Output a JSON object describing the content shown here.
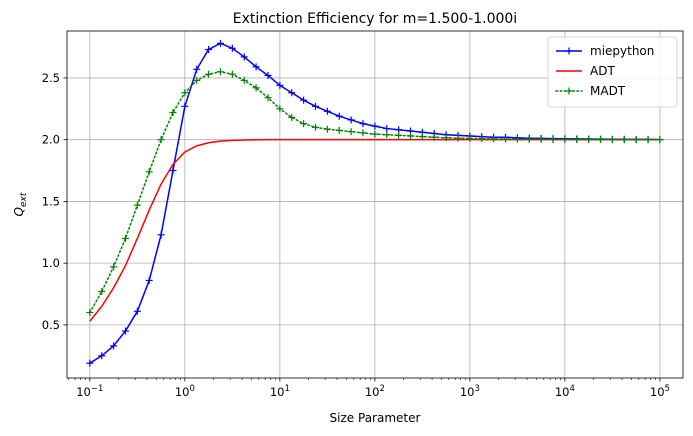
{
  "chart_data": {
    "type": "line",
    "title": "Extinction Efficiency for m=1.500-1.000i",
    "xlabel": "Size Parameter",
    "ylabel_main": "Q",
    "ylabel_sub": "ext",
    "xscale": "log",
    "xlim": [
      0.0575,
      175000
    ],
    "ylim": [
      0.07,
      2.88
    ],
    "grid": true,
    "legend_position": "top-right",
    "x_ticks": [
      {
        "value": 0.1,
        "base": "10",
        "exp": "−1"
      },
      {
        "value": 1,
        "base": "10",
        "exp": "0"
      },
      {
        "value": 10,
        "base": "10",
        "exp": "1"
      },
      {
        "value": 100,
        "base": "10",
        "exp": "2"
      },
      {
        "value": 1000,
        "base": "10",
        "exp": "3"
      },
      {
        "value": 10000,
        "base": "10",
        "exp": "4"
      },
      {
        "value": 100000,
        "base": "10",
        "exp": "5"
      }
    ],
    "y_ticks": [
      {
        "value": 0.5,
        "label": "0.5"
      },
      {
        "value": 1.0,
        "label": "1.0"
      },
      {
        "value": 1.5,
        "label": "1.5"
      },
      {
        "value": 2.0,
        "label": "2.0"
      },
      {
        "value": 2.5,
        "label": "2.5"
      }
    ],
    "series": [
      {
        "name": "miepython",
        "color": "#0000ff",
        "line_style": "solid",
        "marker": "plus",
        "x": [
          0.1,
          0.1334,
          0.1778,
          0.2371,
          0.3162,
          0.4217,
          0.5623,
          0.7499,
          1.0,
          1.334,
          1.778,
          2.371,
          3.162,
          4.217,
          5.623,
          7.499,
          10.0,
          13.34,
          17.78,
          23.71,
          31.62,
          42.17,
          56.23,
          74.99,
          100.0,
          133.4,
          177.8,
          237.1,
          316.2,
          421.7,
          562.3,
          749.9,
          1000,
          1334,
          1778,
          2371,
          3162,
          4217,
          5623,
          7499,
          10000,
          13340,
          17780,
          23710,
          31620,
          42170,
          56230,
          74990,
          100000
        ],
        "y": [
          0.19,
          0.25,
          0.33,
          0.45,
          0.61,
          0.86,
          1.23,
          1.75,
          2.27,
          2.57,
          2.73,
          2.78,
          2.74,
          2.67,
          2.59,
          2.52,
          2.44,
          2.38,
          2.32,
          2.27,
          2.23,
          2.19,
          2.16,
          2.13,
          2.11,
          2.09,
          2.08,
          2.07,
          2.06,
          2.05,
          2.04,
          2.035,
          2.03,
          2.025,
          2.02,
          2.02,
          2.015,
          2.012,
          2.01,
          2.008,
          2.007,
          2.006,
          2.005,
          2.004,
          2.003,
          2.003,
          2.002,
          2.002,
          2.0
        ]
      },
      {
        "name": "ADT",
        "color": "#ff0000",
        "line_style": "solid",
        "marker": "none",
        "x": [
          0.1,
          0.1334,
          0.1778,
          0.2371,
          0.3162,
          0.4217,
          0.5623,
          0.7499,
          1.0,
          1.334,
          1.778,
          2.371,
          3.162,
          4.217,
          5.623,
          7.499,
          10.0,
          100000
        ],
        "y": [
          0.53,
          0.65,
          0.8,
          0.98,
          1.2,
          1.43,
          1.64,
          1.8,
          1.9,
          1.95,
          1.975,
          1.988,
          1.994,
          1.997,
          1.999,
          2.0,
          2.0,
          2.0
        ]
      },
      {
        "name": "MADT",
        "color": "#008000",
        "line_style": "dotted",
        "marker": "plus",
        "x": [
          0.1,
          0.1334,
          0.1778,
          0.2371,
          0.3162,
          0.4217,
          0.5623,
          0.7499,
          1.0,
          1.334,
          1.778,
          2.371,
          3.162,
          4.217,
          5.623,
          7.499,
          10.0,
          13.34,
          17.78,
          23.71,
          31.62,
          42.17,
          56.23,
          74.99,
          100.0,
          133.4,
          177.8,
          237.1,
          316.2,
          421.7,
          562.3,
          749.9,
          1000,
          1334,
          1778,
          2371,
          3162,
          4217,
          5623,
          7499,
          10000,
          13340,
          17780,
          23710,
          31620,
          42170,
          56230,
          74990,
          100000
        ],
        "y": [
          0.6,
          0.77,
          0.97,
          1.2,
          1.47,
          1.74,
          2.0,
          2.22,
          2.38,
          2.48,
          2.53,
          2.55,
          2.53,
          2.48,
          2.42,
          2.34,
          2.25,
          2.18,
          2.13,
          2.1,
          2.085,
          2.075,
          2.065,
          2.055,
          2.045,
          2.04,
          2.035,
          2.03,
          2.025,
          2.02,
          2.015,
          2.012,
          2.01,
          2.008,
          2.006,
          2.005,
          2.004,
          2.003,
          2.003,
          2.002,
          2.002,
          2.001,
          2.001,
          2.001,
          2.0,
          2.0,
          2.0,
          2.0,
          2.0
        ]
      }
    ]
  }
}
